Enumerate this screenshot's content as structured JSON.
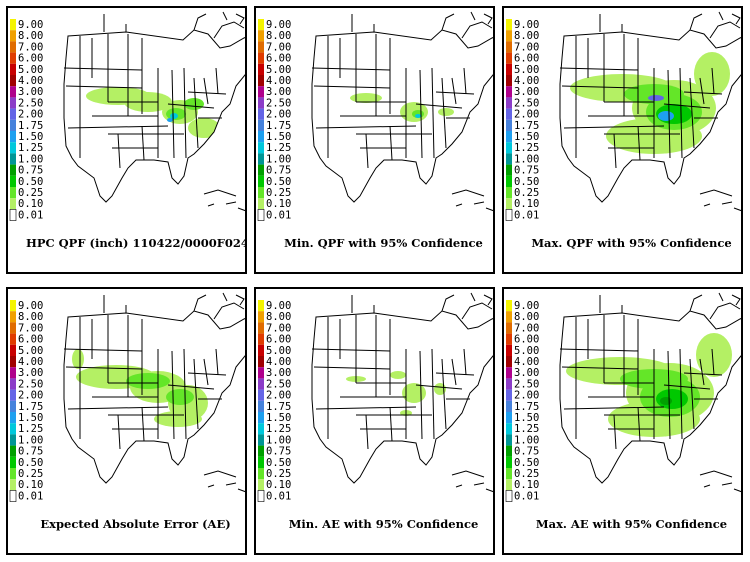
{
  "legend": {
    "levels": [
      "9.00",
      "8.00",
      "7.00",
      "6.00",
      "5.00",
      "4.00",
      "3.00",
      "2.50",
      "2.00",
      "1.75",
      "1.50",
      "1.25",
      "1.00",
      "0.75",
      "0.50",
      "0.25",
      "0.10",
      "0.01"
    ],
    "colors": [
      "#f4f400",
      "#f0a000",
      "#e06c00",
      "#e03c00",
      "#c80000",
      "#a00000",
      "#b0008c",
      "#8c3cc8",
      "#6464e6",
      "#4682dc",
      "#1ea0f0",
      "#00c8dc",
      "#009696",
      "#00a000",
      "#00c800",
      "#64e628",
      "#b4f064",
      "#ffffff"
    ]
  },
  "panels": [
    {
      "id": "qpf",
      "caption": "HPC QPF (inch) 110422/0000F024"
    },
    {
      "id": "min-qpf",
      "caption": "Min. QPF with 95% Confidence"
    },
    {
      "id": "max-qpf",
      "caption": "Max. QPF with 95% Confidence"
    },
    {
      "id": "ae",
      "caption": "Expected Absolute Error (AE)"
    },
    {
      "id": "min-ae",
      "caption": "Min. AE with 95% Confidence"
    },
    {
      "id": "max-ae",
      "caption": "Max. AE with 95% Confidence"
    }
  ]
}
